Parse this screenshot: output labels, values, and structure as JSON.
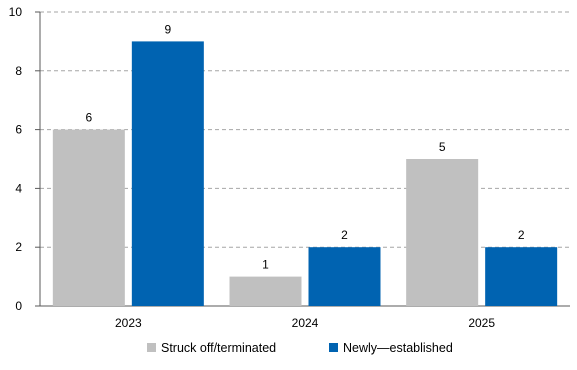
{
  "chart_data": {
    "type": "bar",
    "categories": [
      "2023",
      "2024",
      "2025"
    ],
    "series": [
      {
        "name": "Struck off/terminated",
        "values": [
          6,
          1,
          5
        ],
        "color": "#c0c0c0"
      },
      {
        "name": "Newly—established",
        "values": [
          9,
          2,
          2
        ],
        "color": "#0063b1"
      }
    ],
    "title": "",
    "xlabel": "",
    "ylabel": "",
    "ylim": [
      0,
      10
    ],
    "yticks": [
      0,
      2,
      4,
      6,
      8,
      10
    ],
    "grid": true,
    "legend_position": "bottom"
  }
}
